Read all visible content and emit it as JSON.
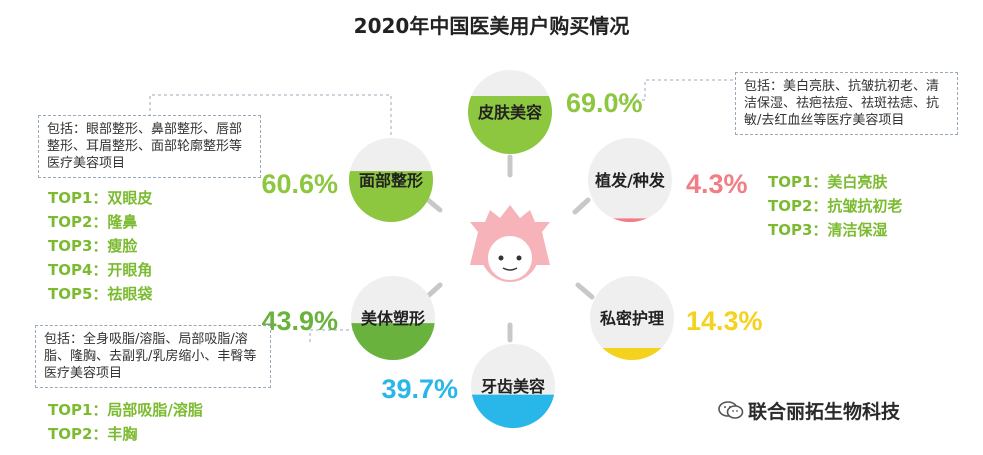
{
  "title": "2020年中国医美用户购买情况",
  "chart_data": {
    "type": "bubble-percent",
    "categories": [
      {
        "name": "皮肤美容",
        "value": 69.0,
        "label": "69.0%",
        "color": "#8dc63f"
      },
      {
        "name": "植发/种发",
        "value": 4.3,
        "label": "4.3%",
        "color": "#f07e84"
      },
      {
        "name": "私密护理",
        "value": 14.3,
        "label": "14.3%",
        "color": "#f5d21e"
      },
      {
        "name": "牙齿美容",
        "value": 39.7,
        "label": "39.7%",
        "color": "#29b6e8"
      },
      {
        "name": "美体塑形",
        "value": 43.9,
        "label": "43.9%",
        "color": "#6ab23e"
      },
      {
        "name": "面部整形",
        "value": 60.6,
        "label": "60.6%",
        "color": "#8dc63f"
      }
    ]
  },
  "notes": {
    "face": {
      "desc": "包括：眼部整形、鼻部整形、唇部整形、耳眉整形、面部轮廓整形等医疗美容项目",
      "tops": [
        "TOP1：双眼皮",
        "TOP2：隆鼻",
        "TOP3：瘦脸",
        "TOP4：开眼角",
        "TOP5：祛眼袋"
      ]
    },
    "skin": {
      "desc": "包括：美白亮肤、抗皱抗初老、清洁保湿、祛疤祛痘、祛斑祛痣、抗敏/去红血丝等医疗美容项目",
      "tops": [
        "TOP1：美白亮肤",
        "TOP2：抗皱抗初老",
        "TOP3：清洁保湿"
      ]
    },
    "body": {
      "desc": "包括：全身吸脂/溶脂、局部吸脂/溶脂、隆胸、去副乳/乳房缩小、丰臀等医疗美容项目",
      "tops": [
        "TOP1：局部吸脂/溶脂",
        "TOP2：丰胸"
      ]
    }
  },
  "watermark": "联合丽拓生物科技"
}
